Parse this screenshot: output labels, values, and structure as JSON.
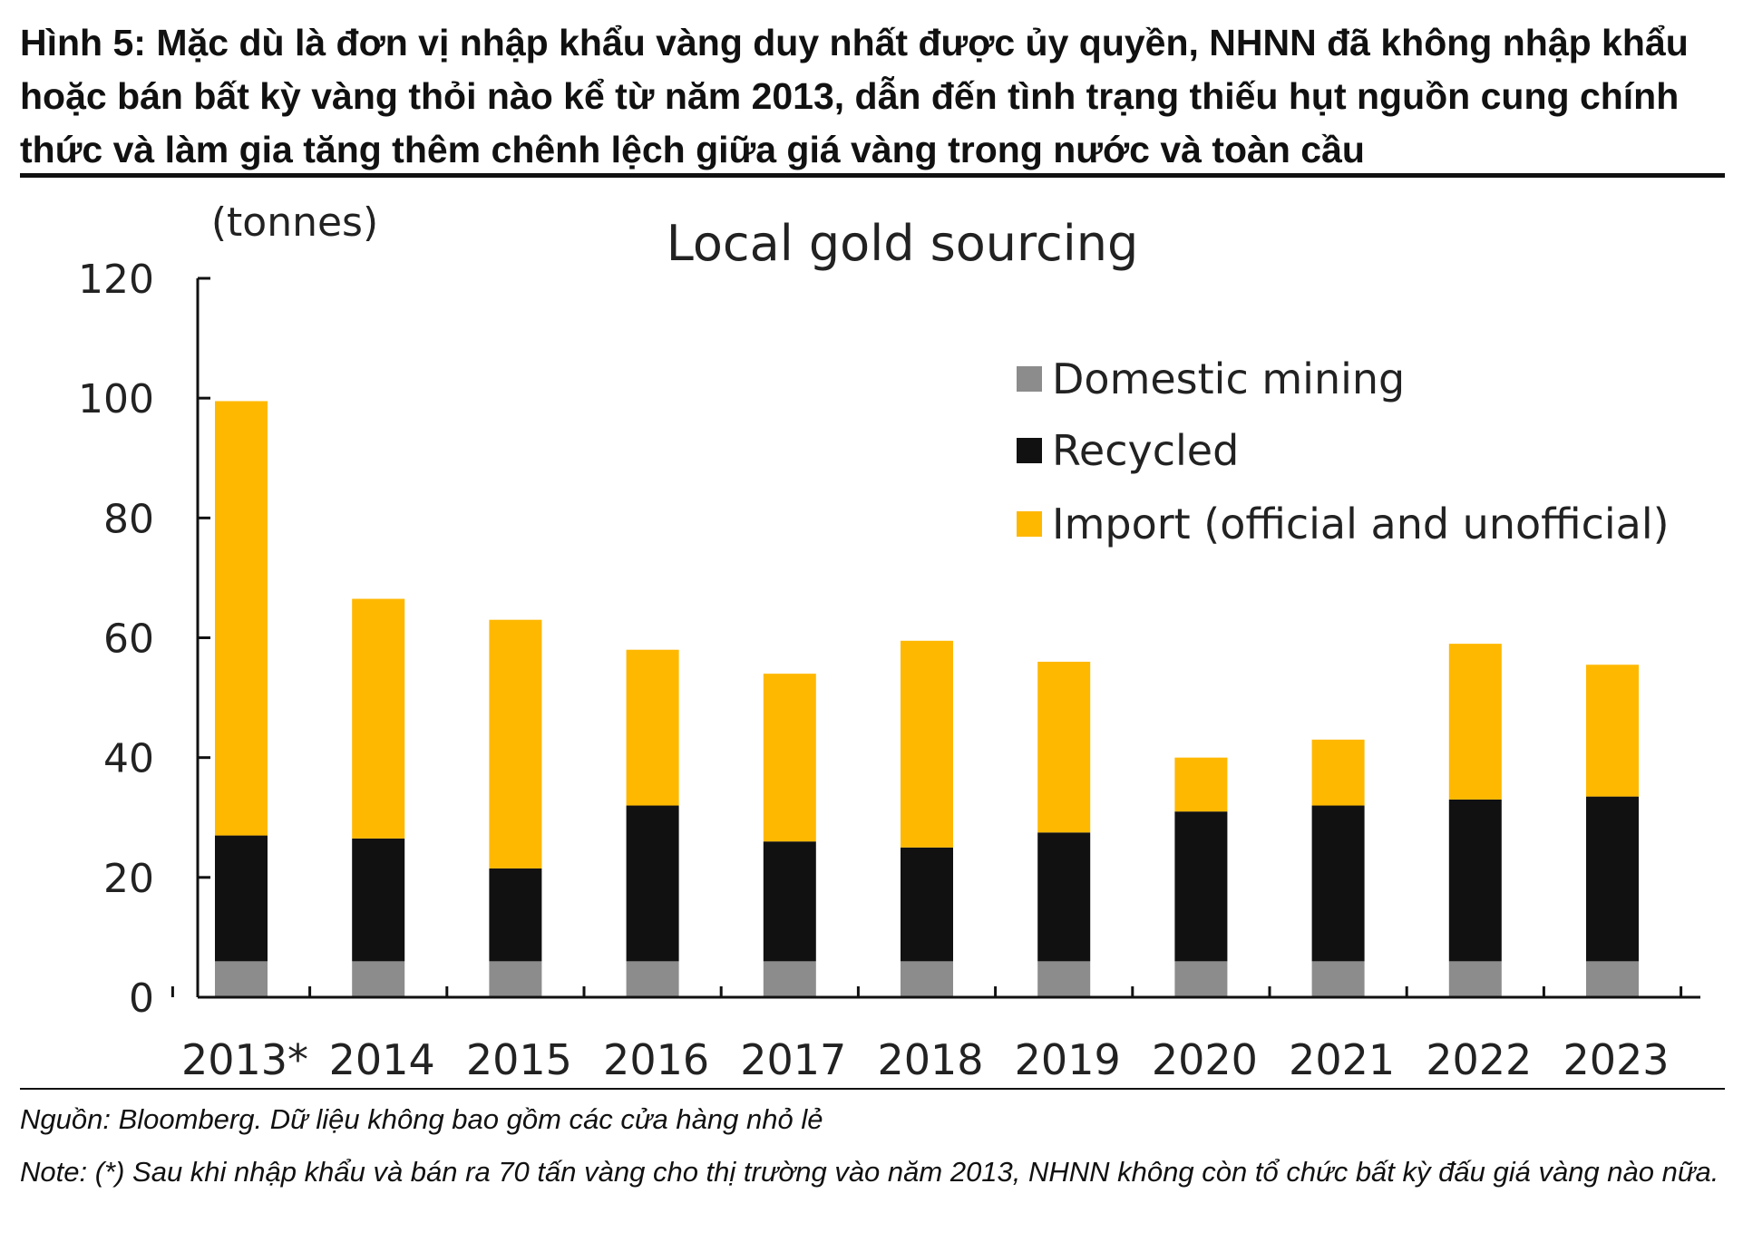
{
  "figure": {
    "title": "Hình 5: Mặc dù là đơn vị nhập khẩu vàng duy nhất được ủy quyền, NHNN đã không nhập khẩu hoặc bán bất kỳ vàng thỏi nào kể từ năm 2013, dẫn đến tình trạng thiếu hụt nguồn cung chính thức và làm gia tăng thêm chênh lệch giữa giá vàng trong nước và toàn cầu",
    "source": "Nguồn: Bloomberg. Dữ liệu không bao gồm các cửa hàng nhỏ lẻ",
    "note": "Note: (*) Sau khi nhập khẩu và bán ra 70 tấn vàng cho thị trường vào năm 2013, NHNN không còn tổ chức bất kỳ đấu giá vàng nào nữa."
  },
  "chart_data": {
    "type": "bar",
    "stacked": true,
    "title": "Local gold sourcing",
    "ylabel": "(tonnes)",
    "xlabel": "",
    "ylim": [
      0,
      120
    ],
    "yticks": [
      0,
      20,
      40,
      60,
      80,
      100,
      120
    ],
    "grid": false,
    "legend_position": "top-right",
    "categories": [
      "2013*",
      "2014",
      "2015",
      "2016",
      "2017",
      "2018",
      "2019",
      "2020",
      "2021",
      "2022",
      "2023"
    ],
    "series": [
      {
        "name": "Domestic mining",
        "color": "#8c8c8c",
        "values": [
          6,
          6,
          6,
          6,
          6,
          6,
          6,
          6,
          6,
          6,
          6
        ]
      },
      {
        "name": "Recycled",
        "color": "#111111",
        "values": [
          21,
          20.5,
          15.5,
          26,
          20,
          19,
          21.5,
          25,
          26,
          27,
          27.5
        ]
      },
      {
        "name": "Import (official and unofficial)",
        "color": "#ffb800",
        "values": [
          72.5,
          40,
          41.5,
          26,
          28,
          34.5,
          28.5,
          9,
          11,
          26,
          22
        ]
      }
    ]
  }
}
